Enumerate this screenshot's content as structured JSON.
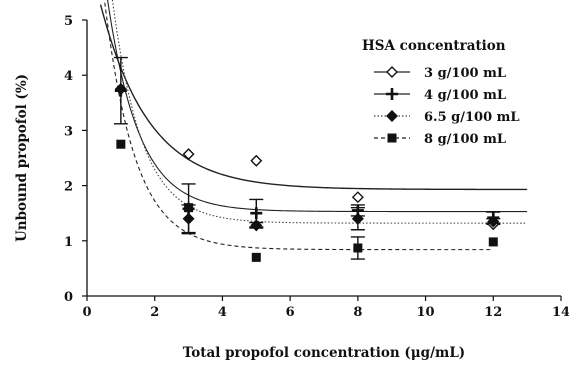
{
  "chart_data": {
    "type": "scatter",
    "title": "",
    "xlabel": "Total propofol concentration (μg/mL)",
    "ylabel": "Unbound propofol (%)",
    "xlim": [
      0,
      14
    ],
    "ylim": [
      0,
      5
    ],
    "xticks": [
      0,
      2,
      4,
      6,
      8,
      10,
      12,
      14
    ],
    "yticks": [
      0,
      1,
      2,
      3,
      4,
      5
    ],
    "grid": false,
    "legend": {
      "title": "HSA concentration",
      "position": "top-right"
    },
    "series": [
      {
        "name": "3 g/100 mL",
        "marker": "open-diamond",
        "line": "solid",
        "x": [
          1,
          3,
          5,
          8,
          12
        ],
        "y": [
          3.75,
          2.57,
          2.45,
          1.79,
          1.3
        ],
        "err": [
          0,
          0,
          0,
          0,
          0
        ],
        "fit": {
          "x_start": 0.4,
          "x_end": 13,
          "plateau": 1.93,
          "amplitude": 3.35,
          "k": 0.7
        }
      },
      {
        "name": "4 g/100 mL",
        "marker": "plus",
        "line": "solid",
        "x": [
          1,
          3,
          5,
          8,
          12
        ],
        "y": [
          3.72,
          1.58,
          1.5,
          1.55,
          1.42
        ],
        "err": [
          0.6,
          0.45,
          0.25,
          0.1,
          0.1
        ],
        "fit": {
          "x_start": 0.5,
          "x_end": 13,
          "plateau": 1.53,
          "amplitude": 4.3,
          "k": 1.07
        }
      },
      {
        "name": "6.5 g/100 mL",
        "marker": "filled-diamond",
        "line": "dotted",
        "x": [
          1,
          3,
          5,
          8,
          12
        ],
        "y": [
          3.75,
          1.4,
          1.28,
          1.4,
          1.35
        ],
        "err": [
          0,
          0.25,
          0.05,
          0.2,
          0.05
        ],
        "fit": {
          "x_start": 0.6,
          "x_end": 13,
          "plateau": 1.32,
          "amplitude": 4.8,
          "k": 1.14
        }
      },
      {
        "name": "8 g/100 mL",
        "marker": "filled-square",
        "line": "dashed",
        "x": [
          1,
          3,
          5,
          8,
          12
        ],
        "y": [
          2.75,
          1.6,
          0.7,
          0.87,
          0.98
        ],
        "err": [
          0,
          0,
          0,
          0.2,
          0
        ],
        "fit": {
          "x_start": 0.5,
          "x_end": 12,
          "plateau": 0.84,
          "amplitude": 4.6,
          "k": 1.1
        }
      }
    ]
  }
}
